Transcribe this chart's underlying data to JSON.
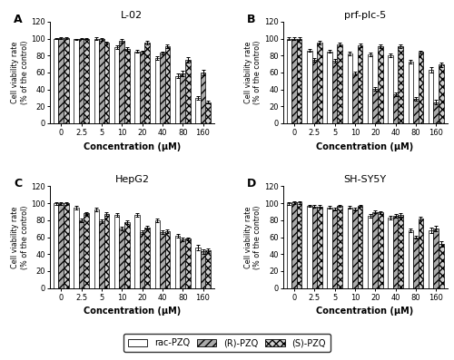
{
  "concentrations": [
    "0",
    "2.5",
    "5",
    "10",
    "20",
    "40",
    "80",
    "160"
  ],
  "panels": [
    {
      "label": "A",
      "title": "L-02",
      "rac": [
        100,
        99,
        100,
        90,
        85,
        77,
        56,
        30
      ],
      "rac_err": [
        1.0,
        1.0,
        1.5,
        2,
        2,
        2,
        3,
        2
      ],
      "r": [
        101,
        100,
        99,
        97,
        84,
        83,
        59,
        60
      ],
      "r_err": [
        1.0,
        1.0,
        2,
        2,
        2,
        2,
        3,
        3
      ],
      "s": [
        101,
        100,
        95,
        88,
        95,
        91,
        75,
        25
      ],
      "s_err": [
        1.0,
        1.0,
        1.5,
        2,
        2,
        2,
        3,
        2
      ]
    },
    {
      "label": "B",
      "title": "prf-plc-5",
      "rac": [
        100,
        86,
        85,
        82,
        81,
        80,
        73,
        63
      ],
      "rac_err": [
        1.5,
        2,
        2,
        2,
        2,
        2,
        2,
        3
      ],
      "r": [
        100,
        75,
        74,
        59,
        41,
        34,
        29,
        25
      ],
      "r_err": [
        1.5,
        2,
        2,
        2,
        2,
        2,
        2,
        3
      ],
      "s": [
        100,
        95,
        93,
        92,
        91,
        91,
        84,
        69
      ],
      "s_err": [
        1.5,
        2,
        2,
        2,
        2,
        2,
        2,
        3
      ]
    },
    {
      "label": "C",
      "title": "HepG2",
      "rac": [
        100,
        95,
        93,
        86,
        86,
        80,
        62,
        48
      ],
      "rac_err": [
        1.5,
        2,
        2,
        2,
        2,
        2,
        2,
        3
      ],
      "r": [
        100,
        80,
        79,
        70,
        66,
        66,
        57,
        43
      ],
      "r_err": [
        1.5,
        2,
        2,
        2,
        2,
        2,
        2,
        3
      ],
      "s": [
        100,
        88,
        87,
        78,
        71,
        67,
        58,
        44
      ],
      "s_err": [
        1.5,
        2,
        2,
        2,
        2,
        2,
        2,
        3
      ]
    },
    {
      "label": "D",
      "title": "SH-SY5Y",
      "rac": [
        100,
        97,
        95,
        95,
        85,
        83,
        68,
        68
      ],
      "rac_err": [
        1.5,
        1.5,
        1.5,
        1.5,
        2,
        2,
        2,
        3
      ],
      "r": [
        101,
        96,
        93,
        93,
        90,
        85,
        60,
        70
      ],
      "r_err": [
        1.5,
        1.5,
        1.5,
        1.5,
        2,
        2,
        2,
        3
      ],
      "s": [
        101,
        96,
        97,
        97,
        89,
        86,
        82,
        52
      ],
      "s_err": [
        1.5,
        1.5,
        1.5,
        1.5,
        2,
        2,
        2,
        3
      ]
    }
  ],
  "ylabel": "Cell viability rate\n(% of the control)",
  "xlabel": "Concentration (μM)",
  "ylim": [
    0,
    120
  ],
  "yticks": [
    0,
    20,
    40,
    60,
    80,
    100,
    120
  ],
  "color_rac": "#ffffff",
  "color_r": "#aaaaaa",
  "color_s": "#d0d0d0",
  "hatch_rac": "",
  "hatch_r": "////",
  "hatch_s": "xxxx"
}
